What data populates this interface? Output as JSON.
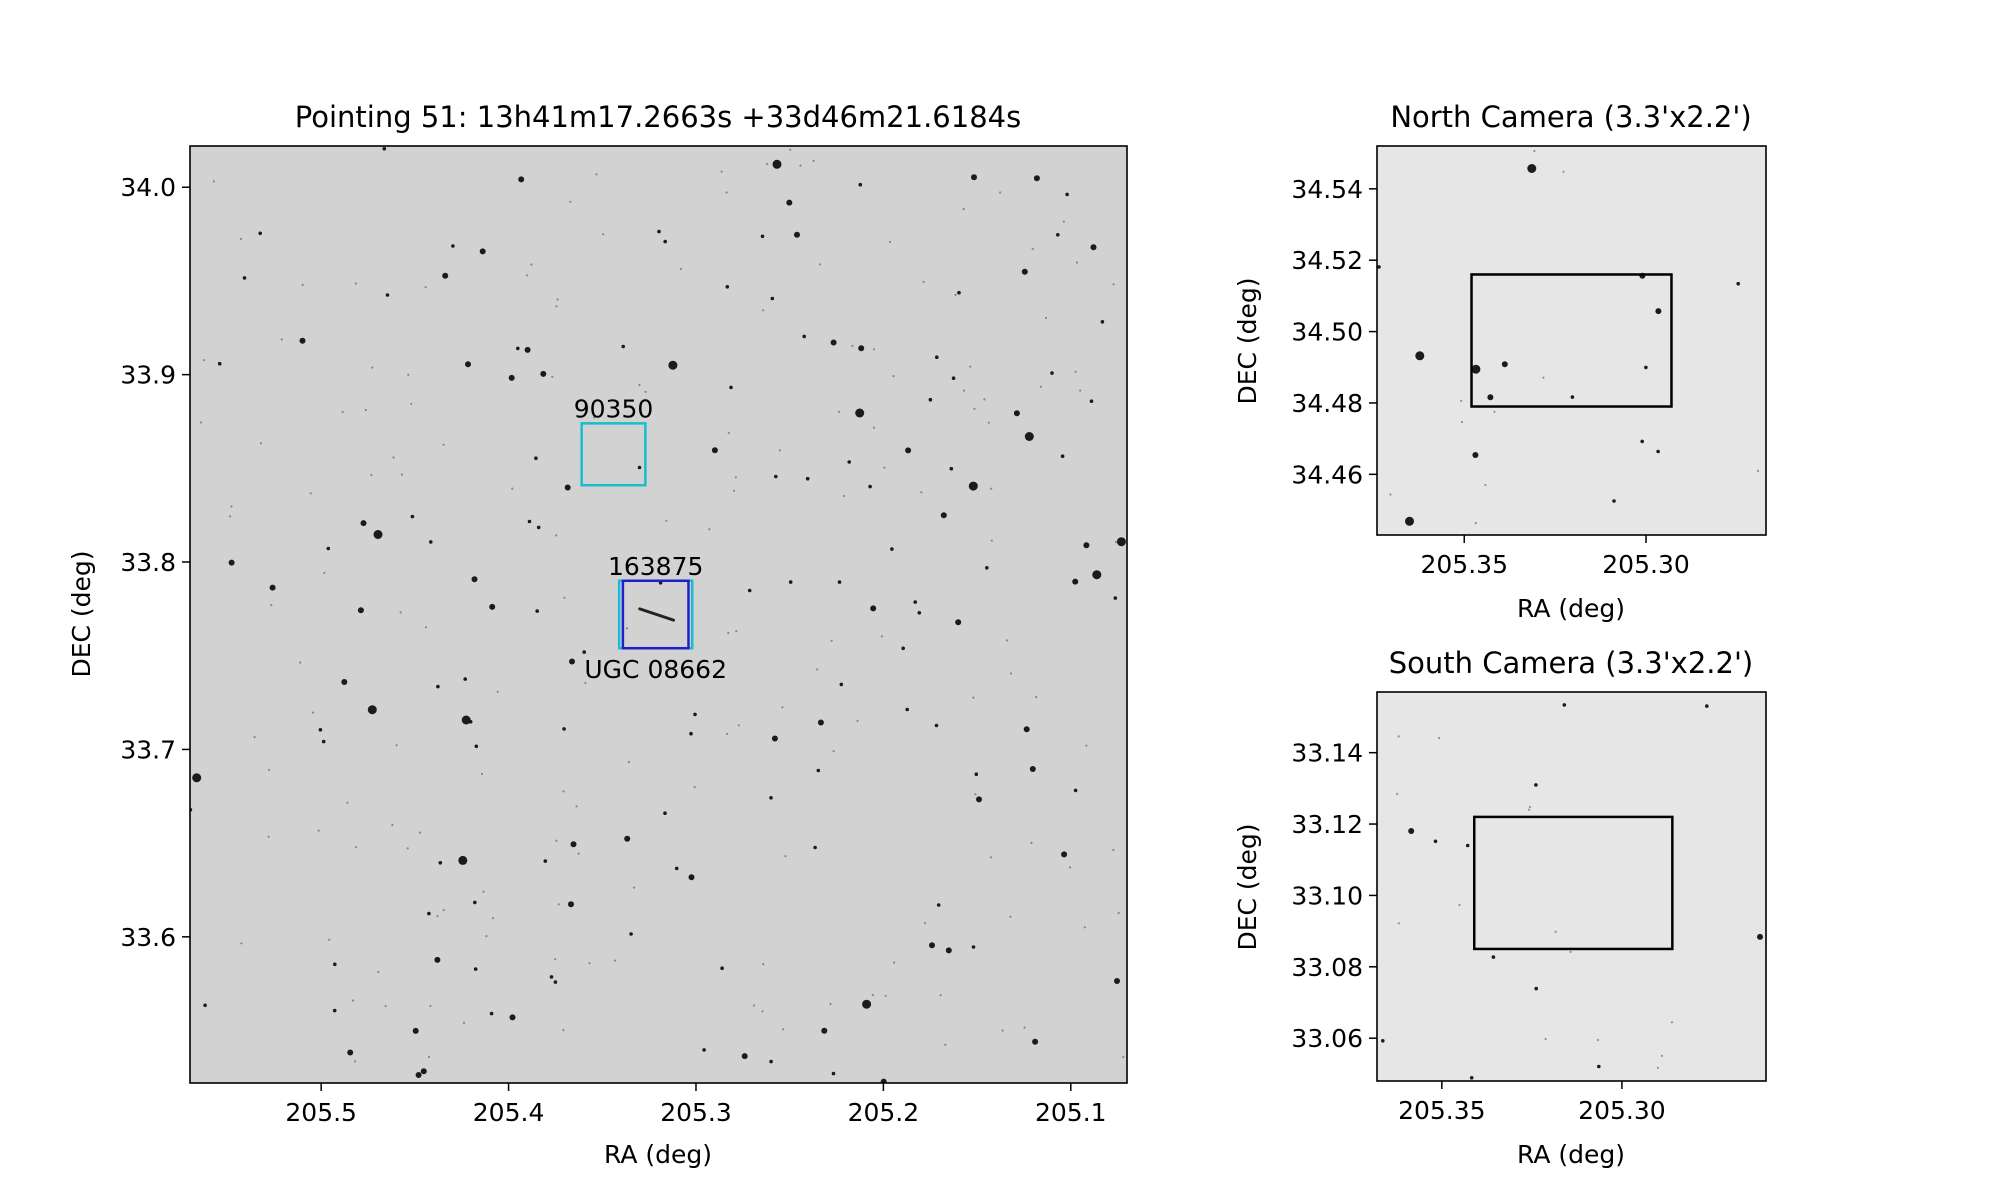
{
  "colors": {
    "sky_background": "#d2d2d2",
    "sky_background_camera": "#e6e6e6",
    "star": "#111111",
    "box_cyan": "#17becf",
    "box_blue": "#1f1fd0",
    "camera_box": "#000000"
  },
  "chart_data": [
    {
      "type": "image",
      "panel": "main",
      "title": "Pointing 51: 13h41m17.2663s +33d46m21.6184s",
      "xlabel": "RA (deg)",
      "ylabel": "DEC (deg)",
      "xlim": [
        205.57,
        205.07
      ],
      "ylim": [
        33.522,
        34.022
      ],
      "xticks": [
        205.5,
        205.4,
        205.3,
        205.2,
        205.1
      ],
      "xtick_labels": [
        "205.5",
        "205.4",
        "205.3",
        "205.2",
        "205.1"
      ],
      "yticks": [
        33.6,
        33.7,
        33.8,
        33.9,
        34.0
      ],
      "ytick_labels": [
        "33.6",
        "33.7",
        "33.8",
        "33.9",
        "34.0"
      ],
      "grid": false,
      "annotations": [
        {
          "label": "90350",
          "box": {
            "ra": [
              205.361,
              205.327
            ],
            "dec": [
              33.841,
              33.874
            ]
          },
          "color": "cyan",
          "label_pos": "above"
        },
        {
          "label": "163875",
          "box": {
            "ra": [
              205.341,
              205.302
            ],
            "dec": [
              33.754,
              33.79
            ]
          },
          "color": "cyan",
          "label_pos": "above"
        },
        {
          "label": "UGC 08662",
          "box": {
            "ra": [
              205.339,
              205.304
            ],
            "dec": [
              33.754,
              33.79
            ]
          },
          "color": "blue",
          "label_pos": "below"
        }
      ]
    },
    {
      "type": "image",
      "panel": "north",
      "title": "North Camera (3.3'x2.2')",
      "xlabel": "RA (deg)",
      "ylabel": "DEC (deg)",
      "xlim": [
        205.374,
        205.267
      ],
      "ylim": [
        34.443,
        34.552
      ],
      "xticks": [
        205.35,
        205.3
      ],
      "xtick_labels": [
        "205.35",
        "205.30"
      ],
      "yticks": [
        34.46,
        34.48,
        34.5,
        34.52,
        34.54
      ],
      "ytick_labels": [
        "34.46",
        "34.48",
        "34.50",
        "34.52",
        "34.54"
      ],
      "grid": false,
      "camera_box": {
        "ra": [
          205.348,
          205.293
        ],
        "dec": [
          34.479,
          34.516
        ]
      }
    },
    {
      "type": "image",
      "panel": "south",
      "title": "South Camera (3.3'x2.2')",
      "xlabel": "RA (deg)",
      "ylabel": "DEC (deg)",
      "xlim": [
        205.368,
        205.26
      ],
      "ylim": [
        33.048,
        33.157
      ],
      "xticks": [
        205.35,
        205.3
      ],
      "xtick_labels": [
        "205.35",
        "205.30"
      ],
      "yticks": [
        33.06,
        33.08,
        33.1,
        33.12,
        33.14
      ],
      "ytick_labels": [
        "33.06",
        "33.08",
        "33.10",
        "33.12",
        "33.14"
      ],
      "grid": false,
      "camera_box": {
        "ra": [
          205.341,
          205.286
        ],
        "dec": [
          33.085,
          33.122
        ]
      }
    }
  ]
}
